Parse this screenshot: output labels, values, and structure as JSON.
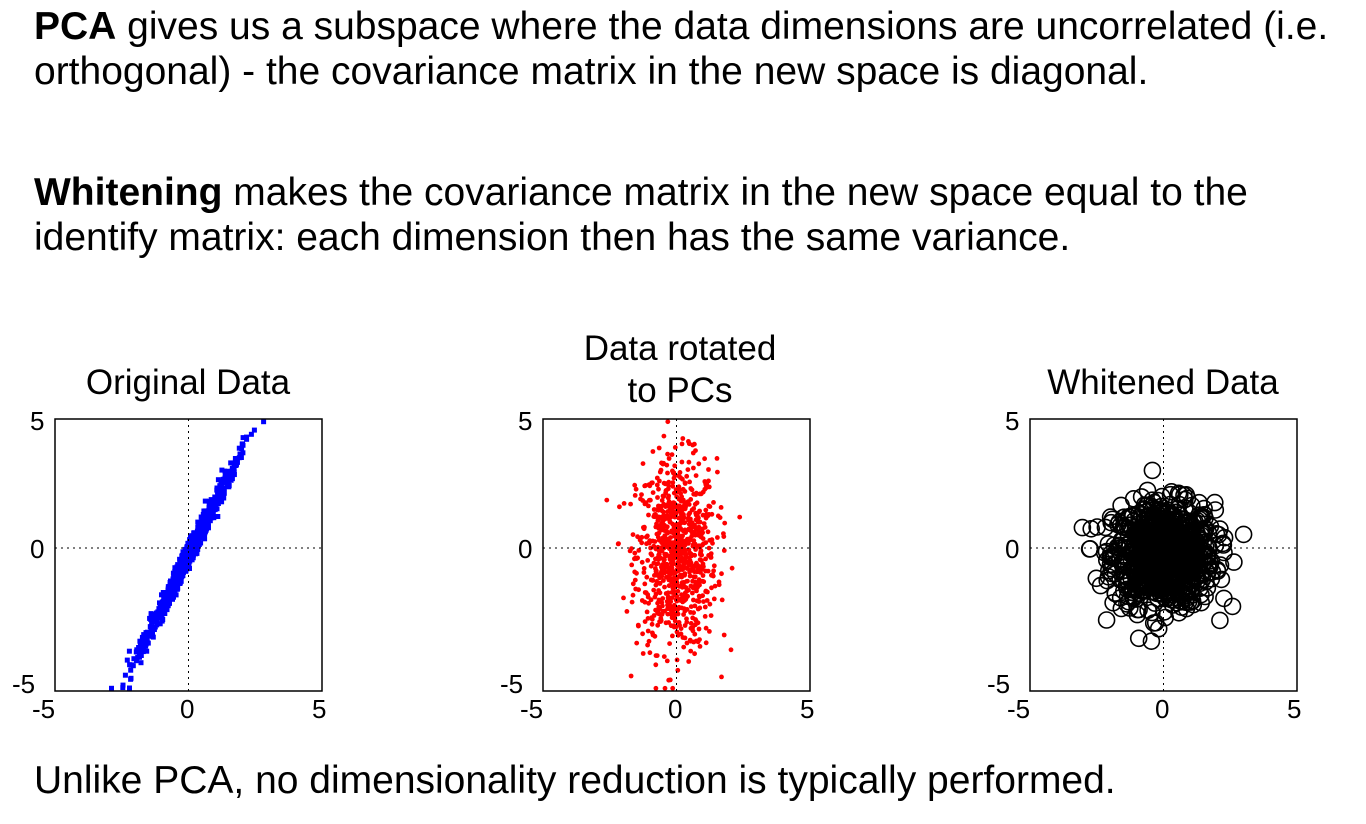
{
  "text": {
    "p1_bold": "PCA",
    "p1_rest": " gives us a subspace where the data dimensions are uncorrelated (i.e. orthogonal) - the covariance matrix in the new space is diagonal.",
    "p2_bold": "Whitening",
    "p2_rest": " makes the covariance matrix in the new space equal to the identify matrix: each dimension then has the same variance.",
    "p3": "Unlike PCA, no dimensionality reduction is typically performed."
  },
  "chart_data": [
    {
      "type": "scatter",
      "title": "Original Data",
      "title_lines": [
        "Original Data"
      ],
      "marker": "filled-square",
      "color": "#0000ff",
      "xlim": [
        -5,
        5
      ],
      "ylim": [
        -5,
        5
      ],
      "xticks": [
        "-5",
        "0",
        "5"
      ],
      "yticks": [
        "5",
        "0",
        "-5"
      ],
      "crosshair": "dotted lines at x=0 and y=0",
      "distribution": "correlated cloud along diagonal, roughly x in [-2.7, 3.2], y in [-5, 5]"
    },
    {
      "type": "scatter",
      "title": "Data rotated to PCs",
      "title_lines": [
        "Data rotated",
        "to PCs"
      ],
      "marker": "filled-dot",
      "color": "#ff0000",
      "xlim": [
        -5,
        5
      ],
      "ylim": [
        -5,
        5
      ],
      "xticks": [
        "-5",
        "0",
        "5"
      ],
      "yticks": [
        "5",
        "0",
        "-5"
      ],
      "crosshair": "dotted lines at x=0 and y=0",
      "distribution": "axis-aligned cloud, x in about [-2.3, 2.5], y in about [-5, 5]"
    },
    {
      "type": "scatter",
      "title": "Whitened Data",
      "title_lines": [
        "Whitened Data"
      ],
      "marker": "open-circle",
      "color": "#000000",
      "xlim": [
        -5,
        5
      ],
      "ylim": [
        -5,
        5
      ],
      "xticks": [
        "-5",
        "0",
        "5"
      ],
      "yticks": [
        "5",
        "0",
        "-5"
      ],
      "crosshair": "dotted lines at x=0 and y=0",
      "distribution": "circular cloud, radius about 3"
    }
  ]
}
